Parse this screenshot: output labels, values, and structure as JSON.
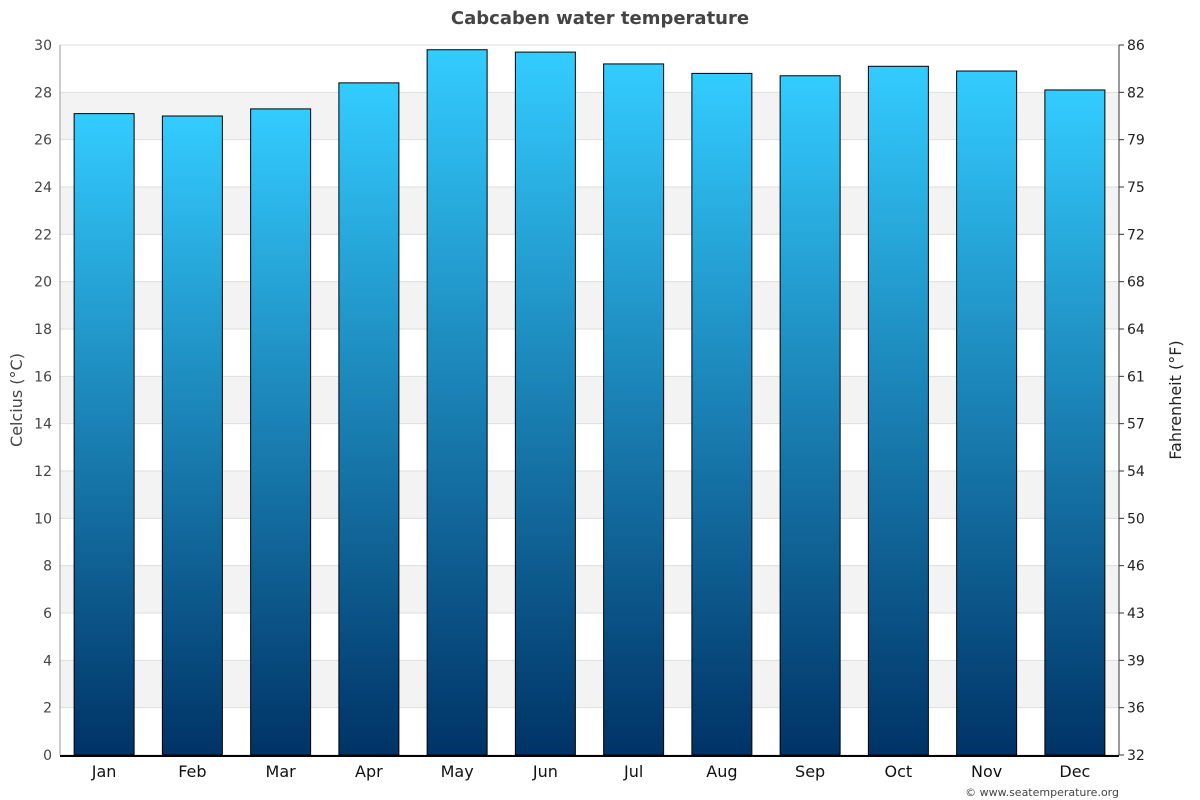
{
  "chart_data": {
    "type": "bar",
    "title": "Cabcaben water temperature",
    "categories": [
      "Jan",
      "Feb",
      "Mar",
      "Apr",
      "May",
      "Jun",
      "Jul",
      "Aug",
      "Sep",
      "Oct",
      "Nov",
      "Dec"
    ],
    "values": [
      27.1,
      27.0,
      27.3,
      28.4,
      29.8,
      29.7,
      29.2,
      28.8,
      28.7,
      29.1,
      28.9,
      28.1
    ],
    "ylabel": "Celcius (°C)",
    "ylabel_right": "Fahrenheit (°F)",
    "ylim": [
      0,
      30
    ],
    "yticks": [
      0,
      2,
      4,
      6,
      8,
      10,
      12,
      14,
      16,
      18,
      20,
      22,
      24,
      26,
      28,
      30
    ],
    "yticks_right": [
      "32",
      "36",
      "39",
      "43",
      "46",
      "50",
      "54",
      "57",
      "61",
      "64",
      "68",
      "72",
      "75",
      "79",
      "82",
      "86"
    ],
    "grid": true,
    "colors": {
      "bar_top": "#33ccff",
      "bar_bottom": "#003366",
      "band": "#f3f3f3",
      "title": "#444444"
    }
  },
  "credit": "© www.seatemperature.org"
}
